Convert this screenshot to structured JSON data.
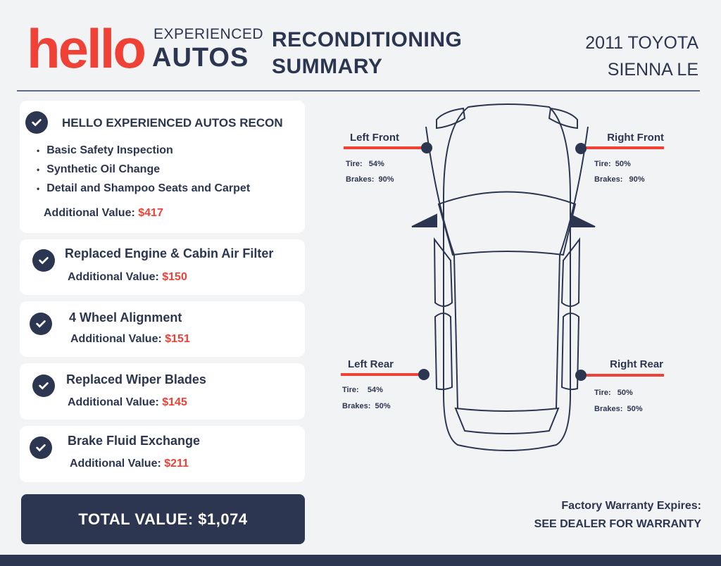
{
  "logo": {
    "hello": "hello",
    "experienced": "EXPERIENCED",
    "autos": "AUTOS"
  },
  "title": {
    "line1": "RECONDITIONING",
    "line2": "SUMMARY"
  },
  "vehicle": {
    "line1": "2011 TOYOTA",
    "line2": "SIENNA LE"
  },
  "recon": {
    "title": "HELLO EXPERIENCED AUTOS RECON",
    "items": [
      "Basic Safety Inspection",
      "Synthetic Oil Change",
      "Detail and Shampoo Seats and Carpet"
    ],
    "value_label": "Additional Value:",
    "value": "$417"
  },
  "services": [
    {
      "title": "Replaced Engine & Cabin Air Filter",
      "value_label": "Additional Value:",
      "value": "$150"
    },
    {
      "title": "4 Wheel Alignment",
      "value_label": "Additional Value:",
      "value": "$151"
    },
    {
      "title": "Replaced Wiper Blades",
      "value_label": "Additional Value:",
      "value": "$145"
    },
    {
      "title": "Brake Fluid Exchange",
      "value_label": "Additional Value:",
      "value": "$211"
    }
  ],
  "total": "TOTAL  VALUE: $1,074",
  "wheels": {
    "left_front": {
      "label": "Left Front",
      "tire": "Tire:   54%",
      "brakes": "Brakes:  90%"
    },
    "right_front": {
      "label": "Right Front",
      "tire": "Tire:  50%",
      "brakes": "Brakes:   90%"
    },
    "left_rear": {
      "label": "Left Rear",
      "tire": "Tire:    54%",
      "brakes": "Brakes:  50%"
    },
    "right_rear": {
      "label": "Right Rear",
      "tire": "Tire:   50%",
      "brakes": "Brakes:  50%"
    }
  },
  "warranty": {
    "line1": "Factory Warranty Expires:",
    "line2": "SEE DEALER FOR WARRANTY"
  },
  "colors": {
    "navy": "#2c3651",
    "red": "#ef4136",
    "background": "#f2f3f5"
  }
}
